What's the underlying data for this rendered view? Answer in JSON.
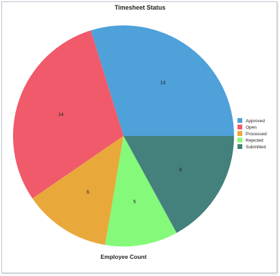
{
  "chart_data": {
    "type": "pie",
    "title": "Timesheet Status",
    "xlabel": "Employee Count",
    "categories": [
      "Approved",
      "Open",
      "Processed",
      "Rejected",
      "Submitted"
    ],
    "values": [
      14,
      14,
      6,
      5,
      8
    ],
    "colors": [
      "#4ea1d9",
      "#f05a6b",
      "#e9a93a",
      "#85f97a",
      "#44807c"
    ],
    "legend_placement": "right",
    "start": "3 o'clock",
    "direction": "counter-clockwise"
  }
}
